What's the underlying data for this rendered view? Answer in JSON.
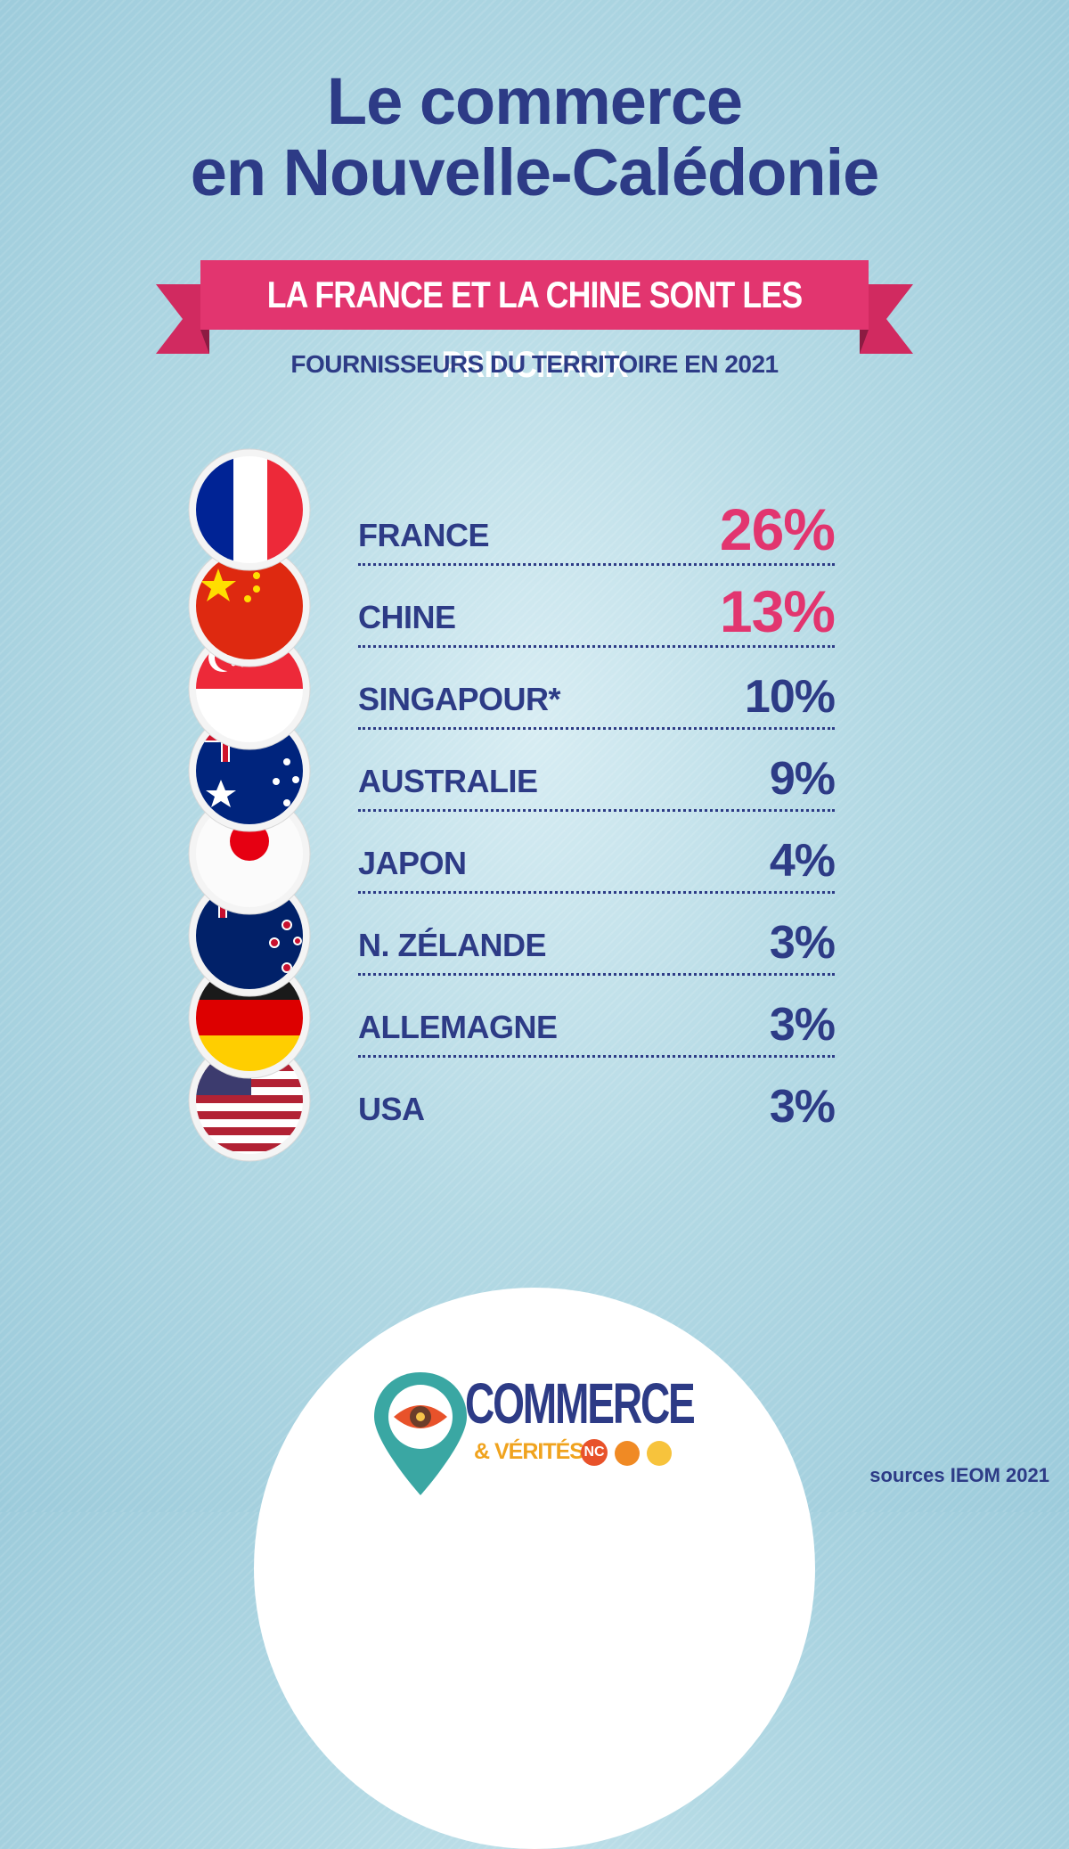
{
  "title": {
    "line1": "Le commerce",
    "line2": "en Nouvelle-Calédonie"
  },
  "ribbon": {
    "text": "LA FRANCE ET LA CHINE SONT LES PRINCIPAUX",
    "color": "#e2356f"
  },
  "subtitle": "FOURNISSEURS DU TERRITOIRE EN 2021",
  "colors": {
    "navy": "#2d3b86",
    "pink": "#e2356f",
    "background": "#b3d9e4"
  },
  "suppliers": [
    {
      "country": "FRANCE",
      "pct": "26%",
      "flag_icon": "france-flag-icon"
    },
    {
      "country": "CHINE",
      "pct": "13%",
      "flag_icon": "china-flag-icon"
    },
    {
      "country": "SINGAPOUR*",
      "pct": "10%",
      "flag_icon": "singapore-flag-icon"
    },
    {
      "country": "AUSTRALIE",
      "pct": "9%",
      "flag_icon": "australia-flag-icon"
    },
    {
      "country": "JAPON",
      "pct": "4%",
      "flag_icon": "japan-flag-icon"
    },
    {
      "country": "N. ZÉLANDE",
      "pct": "3%",
      "flag_icon": "new-zealand-flag-icon"
    },
    {
      "country": "ALLEMAGNE",
      "pct": "3%",
      "flag_icon": "germany-flag-icon"
    },
    {
      "country": "USA",
      "pct": "3%",
      "flag_icon": "usa-flag-icon"
    }
  ],
  "logo": {
    "name": "COMMERCE",
    "tagline": "& VÉRITÉS",
    "badge": "NC",
    "icon": "location-pin-eye-icon"
  },
  "source": "sources IEOM 2021"
}
